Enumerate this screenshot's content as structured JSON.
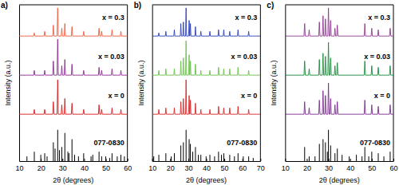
{
  "chart_data": [
    {
      "type": "line",
      "title": "a)",
      "x_label": "2θ (degrees)",
      "y_label": "Intensity (a.u.)",
      "xlim": [
        10,
        60
      ],
      "xticks": [
        10,
        20,
        30,
        40,
        50,
        60
      ],
      "ylim": [
        0,
        100
      ],
      "tick_labels": "x",
      "series": [
        {
          "name": "077-0830",
          "type": "bar",
          "color": "#000000",
          "x": [
            13.6,
            17.0,
            20.0,
            21.8,
            22.9,
            25.8,
            26.6,
            27.8,
            28.6,
            29.7,
            31.1,
            32.5,
            33.0,
            34.4,
            35.6,
            37.4,
            39.8,
            43.2,
            44.0,
            46.9,
            48.1,
            50.0,
            51.8,
            52.9,
            55.3,
            57.0,
            58.6
          ],
          "values": [
            3,
            6,
            4,
            5,
            3,
            12,
            8,
            20,
            7,
            9,
            18,
            6,
            5,
            14,
            4,
            3,
            5,
            3,
            4,
            6,
            3,
            3,
            2,
            5,
            3,
            4,
            3
          ]
        },
        {
          "name": "x = 0",
          "color": "#d7191c",
          "x": [
            10,
            16.7,
            17.0,
            17.3,
            21.5,
            21.8,
            22.1,
            25.5,
            25.8,
            26.1,
            27.5,
            27.8,
            28.1,
            29.4,
            29.7,
            30.0,
            30.8,
            31.1,
            31.4,
            34.1,
            34.4,
            34.7,
            39.5,
            39.8,
            40.1,
            46.6,
            46.9,
            47.2,
            47.8,
            48.1,
            48.4,
            52.6,
            52.9,
            53.2,
            56.7,
            57.0,
            57.3,
            60
          ],
          "values": [
            30,
            30,
            33,
            30,
            30,
            33,
            30,
            30,
            38,
            30,
            30,
            52,
            30,
            30,
            36,
            30,
            30,
            40,
            30,
            30,
            37,
            30,
            30,
            33,
            30,
            30,
            36,
            30,
            30,
            33,
            30,
            30,
            34,
            30,
            30,
            33,
            30,
            30
          ]
        },
        {
          "name": "x = 0.03",
          "color": "#8b2a8f",
          "x": [
            10,
            16.7,
            17.0,
            17.3,
            21.5,
            21.8,
            22.1,
            25.5,
            25.8,
            26.1,
            27.5,
            27.8,
            28.1,
            29.4,
            29.7,
            30.0,
            30.8,
            31.1,
            31.4,
            34.1,
            34.4,
            34.7,
            39.5,
            39.8,
            40.1,
            46.6,
            46.9,
            47.2,
            47.8,
            48.1,
            48.4,
            52.6,
            52.9,
            53.2,
            56.7,
            57.0,
            57.3,
            60
          ],
          "values": [
            55,
            55,
            58,
            55,
            55,
            58,
            55,
            55,
            64,
            55,
            55,
            78,
            55,
            55,
            61,
            55,
            55,
            65,
            55,
            55,
            62,
            55,
            55,
            58,
            55,
            55,
            60,
            55,
            55,
            58,
            55,
            55,
            59,
            55,
            55,
            58,
            55,
            55
          ]
        },
        {
          "name": "x = 0.3",
          "color": "#f05a3a",
          "x": [
            10,
            16.7,
            17.0,
            17.3,
            21.5,
            21.8,
            22.1,
            25.5,
            25.8,
            26.1,
            27.5,
            27.8,
            28.1,
            29.4,
            29.7,
            30.0,
            30.8,
            31.1,
            31.4,
            34.1,
            34.4,
            34.7,
            39.5,
            39.8,
            40.1,
            46.6,
            46.9,
            47.2,
            47.8,
            48.1,
            48.4,
            52.6,
            52.9,
            53.2,
            56.7,
            57.0,
            57.3,
            60
          ],
          "values": [
            80,
            80,
            82,
            80,
            80,
            83,
            80,
            80,
            87,
            80,
            80,
            98,
            80,
            80,
            85,
            80,
            80,
            88,
            80,
            80,
            86,
            80,
            80,
            83,
            80,
            80,
            85,
            80,
            80,
            83,
            80,
            80,
            84,
            80,
            80,
            83,
            80,
            80
          ]
        }
      ]
    },
    {
      "type": "line",
      "title": "b)",
      "x_label": "2θ (degrees)",
      "y_label": "Intensity (a.u.)",
      "xlim": [
        10,
        70
      ],
      "xticks": [
        10,
        20,
        30,
        40,
        50,
        60,
        70
      ],
      "ylim": [
        0,
        100
      ],
      "tick_labels": "x",
      "series": [
        {
          "name": "077-0830",
          "type": "bar",
          "color": "#000000",
          "x": [
            10.9,
            13.7,
            17.6,
            20.6,
            22.3,
            25.9,
            27.3,
            28.8,
            30.5,
            31.2,
            32.5,
            34.0,
            35.6,
            37.0,
            39.9,
            42.0,
            44.6,
            46.8,
            48.4,
            49.7,
            53.0,
            55.6,
            57.6,
            60.5,
            63.5,
            66.0
          ],
          "values": [
            3,
            4,
            5,
            3,
            5,
            10,
            12,
            20,
            14,
            11,
            6,
            9,
            4,
            4,
            3,
            4,
            3,
            6,
            4,
            5,
            4,
            3,
            5,
            3,
            3,
            2
          ]
        },
        {
          "name": "x = 0",
          "color": "#d62728",
          "x": [
            10,
            13.4,
            13.7,
            14.0,
            17.3,
            17.6,
            17.9,
            22.0,
            22.3,
            22.6,
            25.6,
            25.9,
            26.2,
            27.0,
            27.3,
            27.6,
            28.5,
            28.8,
            29.1,
            30.2,
            30.5,
            30.8,
            30.9,
            31.2,
            31.5,
            33.7,
            34.0,
            34.3,
            36.7,
            37.0,
            37.3,
            41.7,
            42.0,
            42.3,
            46.5,
            46.8,
            47.1,
            49.4,
            49.7,
            50.0,
            52.7,
            53.0,
            53.3,
            57.3,
            57.6,
            57.9,
            63.2,
            63.5,
            63.8,
            70
          ],
          "values": [
            30,
            30,
            33,
            30,
            30,
            34,
            30,
            30,
            34,
            30,
            30,
            38,
            30,
            30,
            40,
            30,
            30,
            52,
            30,
            30,
            42,
            30,
            30,
            39,
            30,
            30,
            37,
            30,
            30,
            33,
            30,
            30,
            33,
            30,
            30,
            35,
            30,
            30,
            34,
            30,
            30,
            34,
            30,
            30,
            35,
            30,
            30,
            33,
            30,
            30
          ]
        },
        {
          "name": "x = 0.03",
          "color": "#6abf4b",
          "x": [
            10,
            13.4,
            13.7,
            14.0,
            17.3,
            17.6,
            17.9,
            22.0,
            22.3,
            22.6,
            25.6,
            25.9,
            26.2,
            27.0,
            27.3,
            27.6,
            28.5,
            28.8,
            29.1,
            30.2,
            30.5,
            30.8,
            30.9,
            31.2,
            31.5,
            33.7,
            34.0,
            34.3,
            36.7,
            37.0,
            37.3,
            41.7,
            42.0,
            42.3,
            46.5,
            46.8,
            47.1,
            49.4,
            49.7,
            50.0,
            52.7,
            53.0,
            53.3,
            57.3,
            57.6,
            57.9,
            63.2,
            63.5,
            63.8,
            70
          ],
          "values": [
            55,
            55,
            58,
            55,
            55,
            59,
            55,
            55,
            59,
            55,
            55,
            64,
            55,
            55,
            66,
            55,
            55,
            77,
            55,
            55,
            68,
            55,
            55,
            64,
            55,
            55,
            62,
            55,
            55,
            58,
            55,
            55,
            58,
            55,
            55,
            60,
            55,
            55,
            59,
            55,
            55,
            59,
            55,
            55,
            60,
            55,
            55,
            58,
            55,
            55
          ]
        },
        {
          "name": "x = 0.3",
          "color": "#2a3fb5",
          "x": [
            10,
            13.4,
            13.7,
            14.0,
            17.3,
            17.6,
            17.9,
            22.0,
            22.3,
            22.6,
            25.6,
            25.9,
            26.2,
            27.0,
            27.3,
            27.6,
            28.5,
            28.8,
            29.1,
            30.2,
            30.5,
            30.8,
            30.9,
            31.2,
            31.5,
            33.7,
            34.0,
            34.3,
            36.7,
            37.0,
            37.3,
            41.7,
            42.0,
            42.3,
            46.5,
            46.8,
            47.1,
            49.4,
            49.7,
            50.0,
            52.7,
            53.0,
            53.3,
            57.3,
            57.6,
            57.9,
            63.2,
            63.5,
            63.8,
            70
          ],
          "values": [
            80,
            80,
            82,
            80,
            80,
            83,
            80,
            80,
            84,
            80,
            80,
            88,
            80,
            80,
            89,
            80,
            80,
            98,
            80,
            80,
            90,
            80,
            80,
            88,
            80,
            80,
            86,
            80,
            80,
            83,
            80,
            80,
            83,
            80,
            80,
            84,
            80,
            80,
            84,
            80,
            80,
            83,
            80,
            80,
            84,
            80,
            80,
            83,
            80,
            80
          ]
        }
      ]
    },
    {
      "type": "line",
      "title": "c)",
      "x_label": "2θ (degrees)",
      "y_label": "Intensity (a.u.)",
      "xlim": [
        10,
        60
      ],
      "xticks": [
        10,
        20,
        30,
        40,
        50,
        60
      ],
      "ylim": [
        0,
        100
      ],
      "tick_labels": "x",
      "series": [
        {
          "name": "077-0830",
          "type": "bar",
          "color": "#000000",
          "x": [
            19.0,
            21.1,
            23.8,
            25.8,
            27.5,
            28.6,
            29.5,
            30.0,
            31.0,
            33.0,
            34.1,
            36.3,
            39.6,
            42.9,
            45.5,
            46.8,
            48.6,
            50.0,
            53.0,
            55.6,
            58.5
          ],
          "values": [
            9,
            3,
            3,
            11,
            14,
            12,
            6,
            20,
            10,
            5,
            8,
            4,
            3,
            4,
            3,
            9,
            3,
            6,
            5,
            3,
            6
          ]
        },
        {
          "name": "x = 0",
          "color": "#7b2e8e",
          "x": [
            10,
            18.7,
            19.0,
            19.3,
            20.8,
            21.1,
            21.4,
            25.5,
            25.8,
            26.1,
            27.2,
            27.5,
            27.8,
            28.3,
            28.6,
            28.9,
            29.7,
            30.0,
            30.3,
            30.7,
            31.0,
            31.3,
            32.7,
            33.0,
            33.3,
            33.8,
            34.1,
            34.4,
            46.5,
            46.8,
            47.1,
            49.7,
            50.0,
            50.3,
            52.7,
            53.0,
            53.3,
            58.2,
            58.5,
            58.8,
            60
          ],
          "values": [
            30,
            30,
            38,
            30,
            30,
            34,
            30,
            30,
            39,
            30,
            30,
            45,
            30,
            30,
            42,
            30,
            30,
            50,
            30,
            30,
            40,
            30,
            30,
            36,
            30,
            30,
            38,
            30,
            30,
            39,
            30,
            30,
            36,
            30,
            30,
            35,
            30,
            30,
            36,
            30,
            30
          ]
        },
        {
          "name": "x = 0.03",
          "color": "#1a8a3a",
          "x": [
            10,
            18.7,
            19.0,
            19.3,
            20.8,
            21.1,
            21.4,
            25.5,
            25.8,
            26.1,
            27.2,
            27.5,
            27.8,
            28.3,
            28.6,
            28.9,
            29.7,
            30.0,
            30.3,
            30.7,
            31.0,
            31.3,
            32.7,
            33.0,
            33.3,
            33.8,
            34.1,
            34.4,
            46.5,
            46.8,
            47.1,
            49.7,
            50.0,
            50.3,
            52.7,
            53.0,
            53.3,
            58.2,
            58.5,
            58.8,
            60
          ],
          "values": [
            55,
            55,
            64,
            55,
            55,
            59,
            55,
            55,
            65,
            55,
            55,
            69,
            55,
            55,
            67,
            55,
            55,
            76,
            55,
            55,
            66,
            55,
            55,
            61,
            55,
            55,
            63,
            55,
            55,
            64,
            55,
            55,
            61,
            55,
            55,
            60,
            55,
            55,
            61,
            55,
            55
          ]
        },
        {
          "name": "x = 0.3",
          "color": "#8e3a8e",
          "x": [
            10,
            18.7,
            19.0,
            19.3,
            20.8,
            21.1,
            21.4,
            25.5,
            25.8,
            26.1,
            27.2,
            27.5,
            27.8,
            28.3,
            28.6,
            28.9,
            29.7,
            30.0,
            30.3,
            30.7,
            31.0,
            31.3,
            32.7,
            33.0,
            33.3,
            33.8,
            34.1,
            34.4,
            46.5,
            46.8,
            47.1,
            49.7,
            50.0,
            50.3,
            52.7,
            53.0,
            53.3,
            58.2,
            58.5,
            58.8,
            60
          ],
          "values": [
            80,
            80,
            88,
            80,
            80,
            84,
            80,
            80,
            89,
            80,
            80,
            93,
            80,
            80,
            91,
            80,
            80,
            98,
            80,
            80,
            90,
            80,
            80,
            85,
            80,
            80,
            87,
            80,
            80,
            88,
            80,
            80,
            85,
            80,
            80,
            84,
            80,
            80,
            85,
            80,
            80
          ]
        }
      ]
    }
  ]
}
